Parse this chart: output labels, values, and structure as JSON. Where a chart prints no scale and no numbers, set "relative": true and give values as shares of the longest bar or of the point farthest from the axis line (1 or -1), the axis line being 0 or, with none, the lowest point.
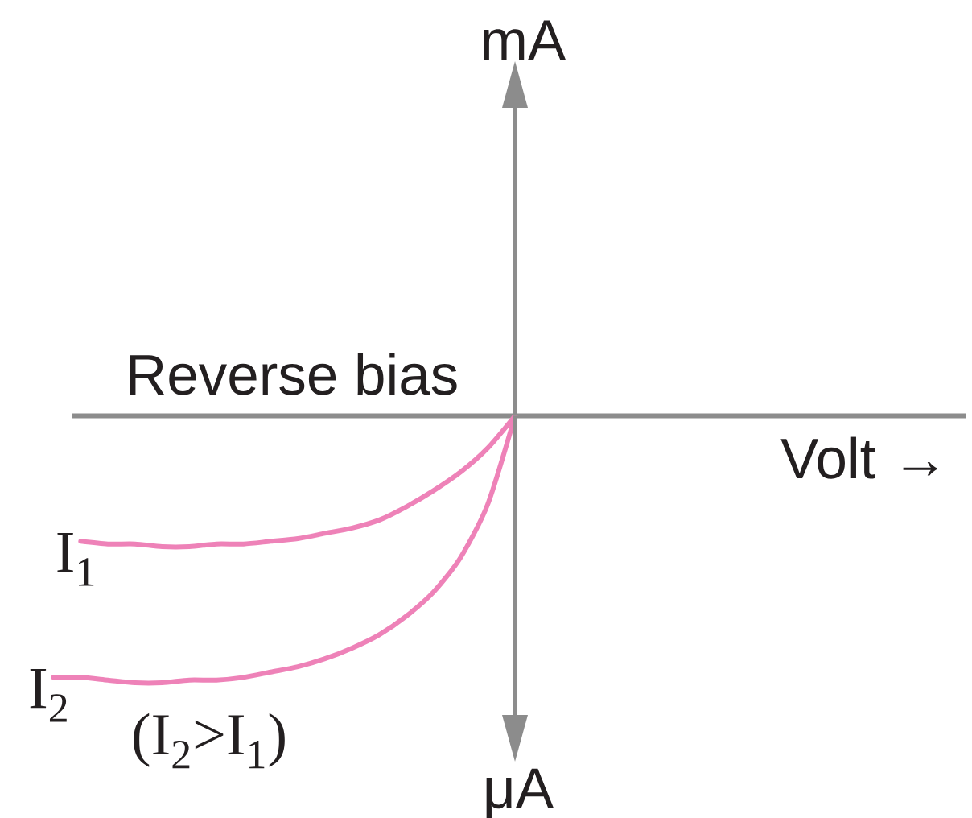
{
  "chart_data": {
    "type": "line",
    "relative": true,
    "xlabel": "Volt →",
    "annotations": [
      "mA",
      "Reverse bias",
      "μA",
      "(I$_{2}$>I$_{1}$)"
    ],
    "categories": [
      null,
      null,
      null,
      null,
      null,
      null,
      null,
      null,
      null,
      null,
      null,
      null,
      null,
      null,
      null,
      null,
      null,
      null
    ],
    "series": [
      {
        "name": "I$_{1}$",
        "color": "#ee82b8",
        "values": [
          null,
          -0.47,
          -0.48,
          -0.48,
          -0.49,
          -0.49,
          -0.48,
          -0.48,
          -0.47,
          -0.46,
          -0.44,
          -0.42,
          -0.39,
          -0.34,
          -0.28,
          -0.21,
          -0.12,
          0
        ]
      },
      {
        "name": "I$_{2}$",
        "color": "#ee82b8",
        "values": [
          -0.98,
          -0.98,
          -0.99,
          -1.0,
          -1.0,
          -0.99,
          -0.99,
          -0.98,
          -0.96,
          -0.94,
          -0.91,
          -0.87,
          -0.82,
          -0.75,
          -0.66,
          -0.53,
          -0.33,
          0
        ]
      }
    ],
    "marker": "none",
    "line_style": "solid"
  }
}
